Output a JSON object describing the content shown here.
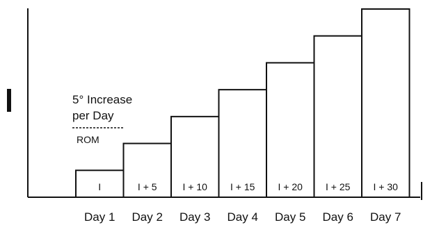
{
  "chart_data": {
    "type": "bar",
    "categories": [
      "Day 1",
      "Day 2",
      "Day 3",
      "Day 4",
      "Day 5",
      "Day 6",
      "Day 7"
    ],
    "values": [
      5,
      10,
      15,
      20,
      25,
      30,
      35
    ],
    "bar_labels": [
      "I",
      "I + 5",
      "I + 10",
      "I + 15",
      "I + 20",
      "I + 25",
      "I + 30"
    ],
    "ylabel": "I",
    "annotation_increase": "5° Increase",
    "annotation_per_day": "per Day",
    "annotation_rom": "ROM",
    "grid": false,
    "legend": false,
    "colors": {
      "stroke": "#111111",
      "fill": "#ffffff"
    }
  }
}
